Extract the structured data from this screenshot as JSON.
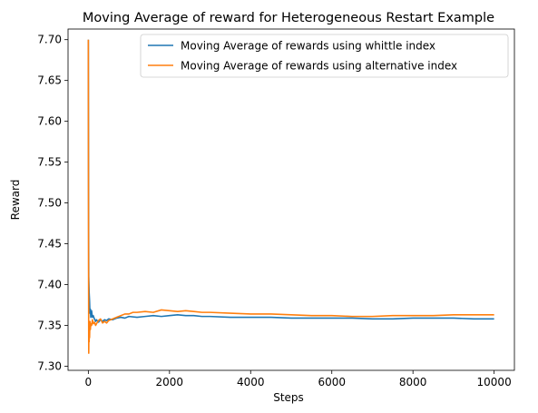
{
  "chart_data": {
    "type": "line",
    "title": "Moving Average of reward for Heterogeneous Restart Example",
    "xlabel": "Steps",
    "ylabel": "Reward",
    "xlim": [
      -500,
      10500
    ],
    "ylim": [
      7.295,
      7.713
    ],
    "x_ticks": [
      0,
      2000,
      4000,
      6000,
      8000,
      10000
    ],
    "y_ticks": [
      7.3,
      7.35,
      7.4,
      7.45,
      7.5,
      7.55,
      7.6,
      7.65,
      7.7
    ],
    "y_tick_labels": [
      "7.30",
      "7.35",
      "7.40",
      "7.45",
      "7.50",
      "7.55",
      "7.60",
      "7.65",
      "7.70"
    ],
    "grid": false,
    "legend_position": "top-right",
    "series": [
      {
        "name": "Moving Average of rewards using whittle index",
        "color": "#1f77b4",
        "x": [
          0,
          5,
          10,
          20,
          30,
          40,
          50,
          60,
          70,
          80,
          100,
          120,
          150,
          180,
          200,
          250,
          300,
          350,
          400,
          450,
          500,
          600,
          700,
          800,
          900,
          1000,
          1200,
          1400,
          1600,
          1800,
          2000,
          2200,
          2400,
          2600,
          2800,
          3000,
          3500,
          4000,
          4500,
          5000,
          5500,
          6000,
          6500,
          7000,
          7500,
          8000,
          8500,
          9000,
          9500,
          10000
        ],
        "y": [
          7.7,
          7.52,
          7.41,
          7.39,
          7.38,
          7.365,
          7.37,
          7.36,
          7.365,
          7.368,
          7.36,
          7.362,
          7.358,
          7.355,
          7.357,
          7.354,
          7.357,
          7.355,
          7.357,
          7.356,
          7.358,
          7.357,
          7.359,
          7.36,
          7.359,
          7.361,
          7.36,
          7.361,
          7.362,
          7.361,
          7.362,
          7.363,
          7.362,
          7.362,
          7.361,
          7.361,
          7.36,
          7.36,
          7.36,
          7.359,
          7.359,
          7.359,
          7.359,
          7.358,
          7.358,
          7.359,
          7.359,
          7.359,
          7.358,
          7.358
        ]
      },
      {
        "name": "Moving Average of rewards using alternative index",
        "color": "#ff7f0e",
        "x": [
          0,
          5,
          10,
          15,
          20,
          25,
          30,
          40,
          50,
          60,
          80,
          100,
          120,
          150,
          180,
          200,
          250,
          300,
          350,
          400,
          450,
          500,
          600,
          700,
          800,
          900,
          1000,
          1100,
          1200,
          1400,
          1600,
          1800,
          2000,
          2200,
          2400,
          2600,
          2800,
          3000,
          3500,
          4000,
          4500,
          5000,
          5500,
          6000,
          6500,
          7000,
          7500,
          8000,
          8500,
          9000,
          9500,
          10000
        ],
        "y": [
          7.7,
          7.42,
          7.316,
          7.35,
          7.33,
          7.345,
          7.335,
          7.355,
          7.345,
          7.352,
          7.35,
          7.357,
          7.352,
          7.354,
          7.35,
          7.352,
          7.356,
          7.358,
          7.353,
          7.355,
          7.353,
          7.356,
          7.358,
          7.36,
          7.362,
          7.364,
          7.364,
          7.366,
          7.366,
          7.367,
          7.366,
          7.369,
          7.368,
          7.367,
          7.368,
          7.367,
          7.366,
          7.366,
          7.365,
          7.364,
          7.364,
          7.363,
          7.362,
          7.362,
          7.361,
          7.361,
          7.362,
          7.362,
          7.362,
          7.363,
          7.363,
          7.363
        ]
      }
    ]
  }
}
